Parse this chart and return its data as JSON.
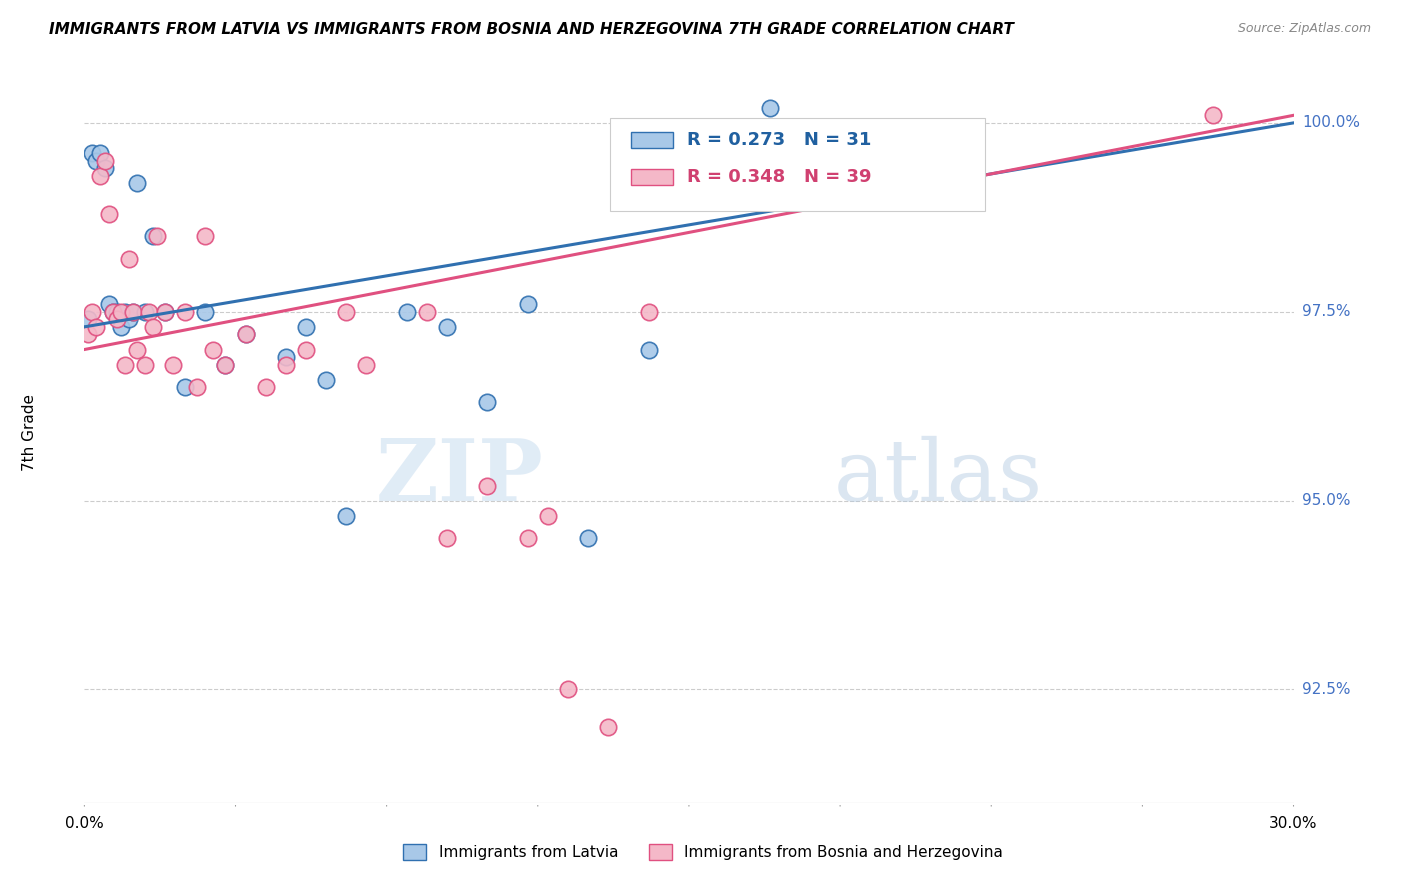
{
  "title": "IMMIGRANTS FROM LATVIA VS IMMIGRANTS FROM BOSNIA AND HERZEGOVINA 7TH GRADE CORRELATION CHART",
  "source": "Source: ZipAtlas.com",
  "ylabel": "7th Grade",
  "xmin": 0.0,
  "xmax": 30.0,
  "ymin": 91.0,
  "ymax": 100.8,
  "ytick_vals": [
    92.5,
    95.0,
    97.5,
    100.0
  ],
  "ytick_labels": [
    "92.5%",
    "95.0%",
    "97.5%",
    "100.0%"
  ],
  "blue_color": "#a8c8e8",
  "pink_color": "#f4b8c8",
  "blue_line_color": "#3070b0",
  "pink_line_color": "#e05080",
  "blue_scatter_x": [
    0.1,
    0.2,
    0.3,
    0.4,
    0.5,
    0.6,
    0.7,
    0.8,
    0.9,
    1.0,
    1.1,
    1.2,
    1.3,
    1.5,
    1.7,
    2.0,
    2.5,
    3.0,
    3.5,
    4.0,
    5.0,
    5.5,
    6.0,
    6.5,
    8.0,
    9.0,
    10.0,
    11.0,
    12.5,
    14.0,
    17.0
  ],
  "blue_scatter_y": [
    97.4,
    99.6,
    99.5,
    99.6,
    99.4,
    97.6,
    97.5,
    97.5,
    97.3,
    97.5,
    97.4,
    97.5,
    99.2,
    97.5,
    98.5,
    97.5,
    96.5,
    97.5,
    96.8,
    97.2,
    96.9,
    97.3,
    96.6,
    94.8,
    97.5,
    97.3,
    96.3,
    97.6,
    94.5,
    97.0,
    100.2
  ],
  "pink_scatter_x": [
    0.1,
    0.2,
    0.3,
    0.4,
    0.5,
    0.6,
    0.7,
    0.8,
    0.9,
    1.0,
    1.1,
    1.2,
    1.3,
    1.5,
    1.6,
    1.7,
    1.8,
    2.0,
    2.2,
    2.5,
    2.8,
    3.0,
    3.2,
    3.5,
    4.0,
    4.5,
    5.0,
    5.5,
    6.5,
    7.0,
    8.5,
    9.0,
    10.0,
    11.0,
    11.5,
    12.0,
    13.0,
    14.0,
    28.0
  ],
  "pink_scatter_y": [
    97.2,
    97.5,
    97.3,
    99.3,
    99.5,
    98.8,
    97.5,
    97.4,
    97.5,
    96.8,
    98.2,
    97.5,
    97.0,
    96.8,
    97.5,
    97.3,
    98.5,
    97.5,
    96.8,
    97.5,
    96.5,
    98.5,
    97.0,
    96.8,
    97.2,
    96.5,
    96.8,
    97.0,
    97.5,
    96.8,
    97.5,
    94.5,
    95.2,
    94.5,
    94.8,
    92.5,
    92.0,
    97.5,
    100.1
  ],
  "watermark_zip": "ZIP",
  "watermark_atlas": "atlas",
  "legend_entries": [
    "Immigrants from Latvia",
    "Immigrants from Bosnia and Herzegovina"
  ]
}
